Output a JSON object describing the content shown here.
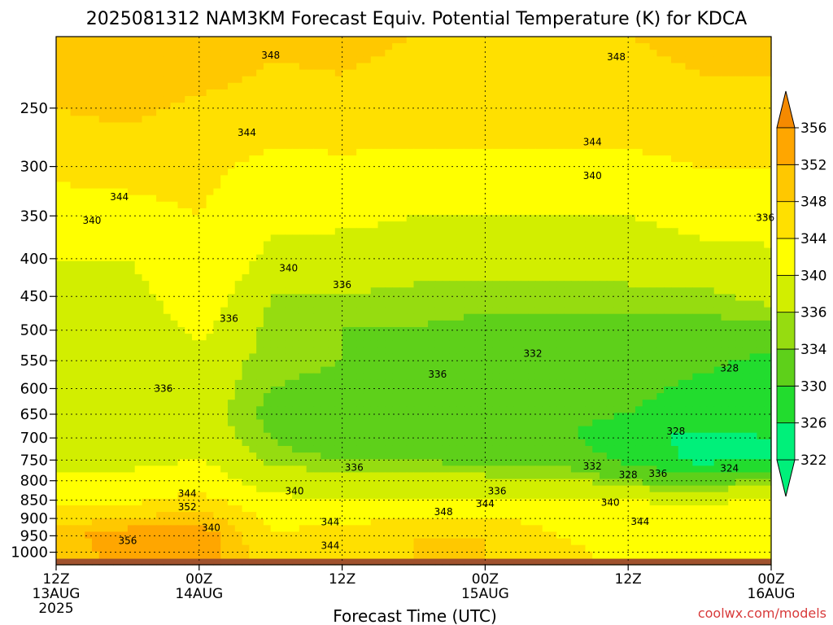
{
  "chart_data": {
    "type": "heatmap",
    "title": "2025081312 NAM3KM Forecast Equiv. Potential Temperature (K) for KDCA",
    "xlabel": "Forecast Time (UTC)",
    "ylabel": "",
    "watermark": "coolwx.com/models",
    "x_range_hours": [
      0,
      60
    ],
    "x_ticks": [
      {
        "hour": 0,
        "lines": [
          "12Z",
          "13AUG",
          "2025"
        ]
      },
      {
        "hour": 12,
        "lines": [
          "00Z",
          "14AUG"
        ]
      },
      {
        "hour": 24,
        "lines": [
          "12Z"
        ]
      },
      {
        "hour": 36,
        "lines": [
          "00Z",
          "15AUG"
        ]
      },
      {
        "hour": 48,
        "lines": [
          "12Z"
        ]
      },
      {
        "hour": 60,
        "lines": [
          "00Z",
          "16AUG"
        ]
      }
    ],
    "y_scale": "log-pressure",
    "y_range_hPa": [
      1040,
      200
    ],
    "y_ticks": [
      250,
      300,
      350,
      400,
      450,
      500,
      550,
      600,
      650,
      700,
      750,
      800,
      850,
      900,
      950,
      1000
    ],
    "grid": true,
    "colorbar": {
      "levels": [
        322,
        326,
        330,
        334,
        336,
        340,
        344,
        348,
        352,
        356
      ],
      "colors": [
        "#00f07a",
        "#22dc2e",
        "#5ed01a",
        "#96dc10",
        "#d2ee00",
        "#ffff00",
        "#ffe000",
        "#ffc800",
        "#ffa600",
        "#f58a00"
      ],
      "extend": "both"
    },
    "ground_color": "#a0522d",
    "columns_hours": [
      0,
      6,
      12,
      18,
      24,
      30,
      36,
      42,
      48,
      54,
      60
    ],
    "rows_hPa": [
      200,
      250,
      300,
      350,
      400,
      450,
      500,
      550,
      600,
      650,
      700,
      750,
      800,
      850,
      900,
      950,
      1000
    ],
    "values_K": [
      [
        350,
        352,
        352,
        349,
        349,
        348,
        347,
        347,
        348,
        349,
        349
      ],
      [
        348,
        349,
        347,
        346,
        347,
        346,
        346,
        346,
        346,
        347,
        347
      ],
      [
        345,
        345,
        345,
        343,
        343,
        343,
        343,
        343,
        343,
        344,
        344
      ],
      [
        342,
        343,
        344,
        341,
        341,
        340,
        340,
        340,
        340,
        341,
        342
      ],
      [
        340,
        340,
        344,
        339,
        338,
        338,
        337,
        337,
        338,
        339,
        339
      ],
      [
        338,
        338,
        343,
        336,
        336,
        335,
        335,
        335,
        335,
        335,
        337
      ],
      [
        337,
        337,
        341,
        335,
        334,
        334,
        333,
        333,
        333,
        333,
        333
      ],
      [
        337,
        337,
        338,
        335,
        334,
        333,
        333,
        332,
        332,
        331,
        329
      ],
      [
        337,
        337,
        338,
        334,
        333,
        333,
        332,
        331,
        331,
        329,
        327
      ],
      [
        337,
        338,
        338,
        333,
        332,
        332,
        332,
        331,
        330,
        328,
        328
      ],
      [
        338,
        338,
        338,
        334,
        332,
        332,
        332,
        331,
        327,
        325,
        326
      ],
      [
        339,
        339,
        340,
        335,
        334,
        334,
        333,
        333,
        329,
        325,
        326
      ],
      [
        341,
        341,
        343,
        338,
        338,
        337,
        337,
        337,
        334,
        332,
        335
      ],
      [
        343,
        343,
        345,
        341,
        340,
        341,
        340,
        341,
        340,
        339,
        341
      ],
      [
        346,
        348,
        350,
        343,
        343,
        344,
        344,
        343,
        343,
        342,
        343
      ],
      [
        350,
        355,
        355,
        344,
        346,
        348,
        348,
        344,
        342,
        343,
        343
      ],
      [
        348,
        355,
        356,
        344,
        346,
        348,
        348,
        345,
        343,
        343,
        344
      ]
    ],
    "contour_labels": [
      {
        "text": "348",
        "hour": 18,
        "hPa": 212
      },
      {
        "text": "348",
        "hour": 47,
        "hPa": 213
      },
      {
        "text": "344",
        "hour": 16,
        "hPa": 270
      },
      {
        "text": "344",
        "hour": 45,
        "hPa": 278
      },
      {
        "text": "340",
        "hour": 45,
        "hPa": 309
      },
      {
        "text": "344",
        "hour": 5.3,
        "hPa": 330
      },
      {
        "text": "340",
        "hour": 3,
        "hPa": 355
      },
      {
        "text": "336",
        "hour": 59.5,
        "hPa": 352
      },
      {
        "text": "340",
        "hour": 19.5,
        "hPa": 412
      },
      {
        "text": "336",
        "hour": 24,
        "hPa": 434
      },
      {
        "text": "336",
        "hour": 14.5,
        "hPa": 482
      },
      {
        "text": "332",
        "hour": 40,
        "hPa": 538
      },
      {
        "text": "336",
        "hour": 32,
        "hPa": 574
      },
      {
        "text": "328",
        "hour": 56.5,
        "hPa": 563
      },
      {
        "text": "336",
        "hour": 9,
        "hPa": 600
      },
      {
        "text": "328",
        "hour": 52,
        "hPa": 686
      },
      {
        "text": "332",
        "hour": 45,
        "hPa": 765
      },
      {
        "text": "328",
        "hour": 48,
        "hPa": 785
      },
      {
        "text": "336",
        "hour": 50.5,
        "hPa": 782
      },
      {
        "text": "324",
        "hour": 56.5,
        "hPa": 770
      },
      {
        "text": "336",
        "hour": 25,
        "hPa": 768
      },
      {
        "text": "340",
        "hour": 20,
        "hPa": 826
      },
      {
        "text": "336",
        "hour": 37,
        "hPa": 826
      },
      {
        "text": "344",
        "hour": 11,
        "hPa": 833
      },
      {
        "text": "344",
        "hour": 36,
        "hPa": 860
      },
      {
        "text": "340",
        "hour": 46.5,
        "hPa": 856
      },
      {
        "text": "352",
        "hour": 11,
        "hPa": 868
      },
      {
        "text": "348",
        "hour": 32.5,
        "hPa": 882
      },
      {
        "text": "344",
        "hour": 23,
        "hPa": 910
      },
      {
        "text": "344",
        "hour": 49,
        "hPa": 909
      },
      {
        "text": "340",
        "hour": 13,
        "hPa": 926
      },
      {
        "text": "356",
        "hour": 6,
        "hPa": 965
      },
      {
        "text": "344",
        "hour": 23,
        "hPa": 980
      }
    ]
  }
}
